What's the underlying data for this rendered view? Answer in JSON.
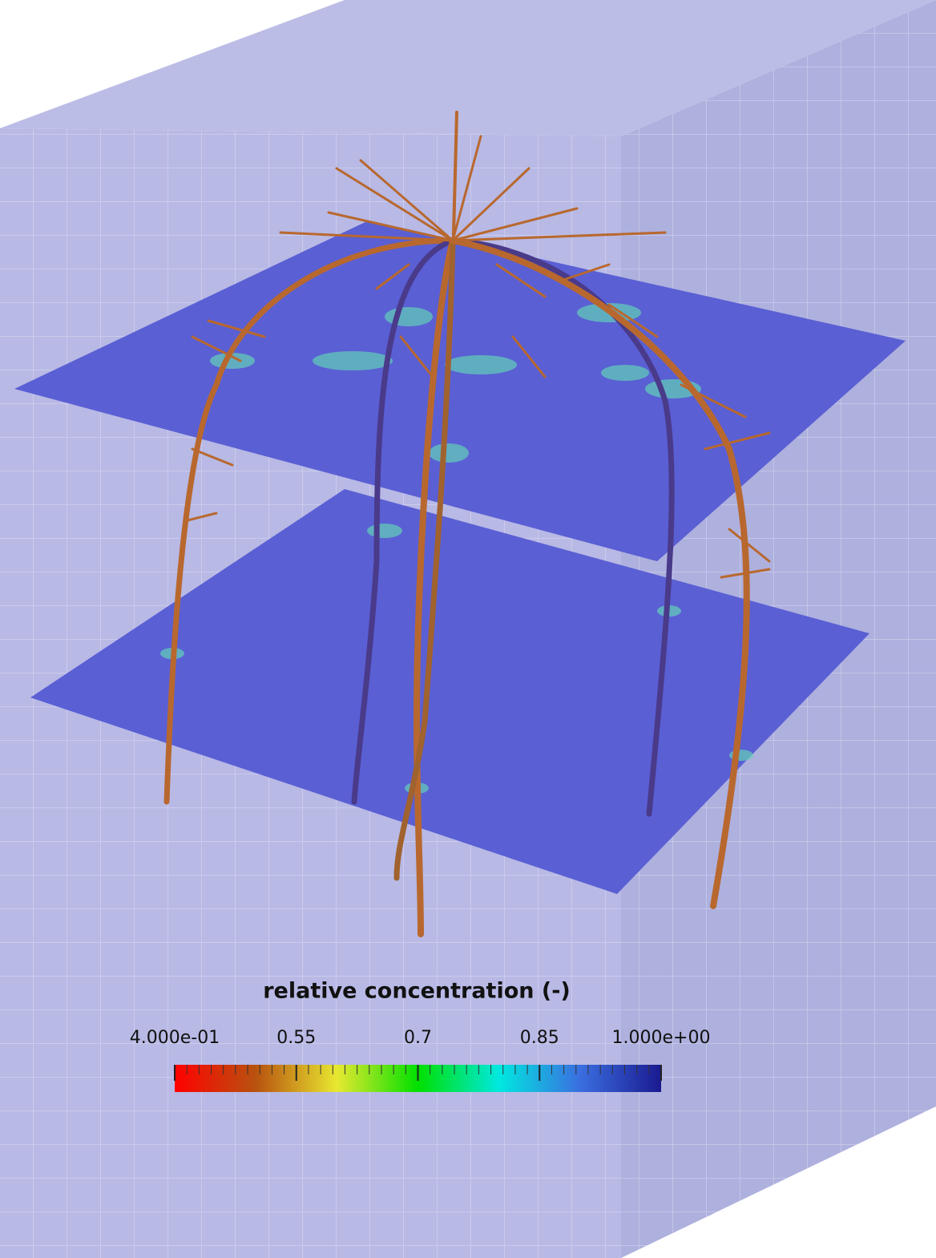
{
  "colorbar": {
    "title": "relative concentration (-)",
    "range": [
      0.4,
      1
    ],
    "ticks": [
      {
        "value": 0.4,
        "label": "4.000e-01"
      },
      0.55,
      0.7,
      0.85,
      {
        "value": 1,
        "label": "1.000e+00"
      }
    ],
    "colormap": [
      "#ff0000",
      "#b8520f",
      "#e8e830",
      "#00e000",
      "#00e8e0",
      "#3a6ee0",
      "#1a1a90"
    ]
  }
}
